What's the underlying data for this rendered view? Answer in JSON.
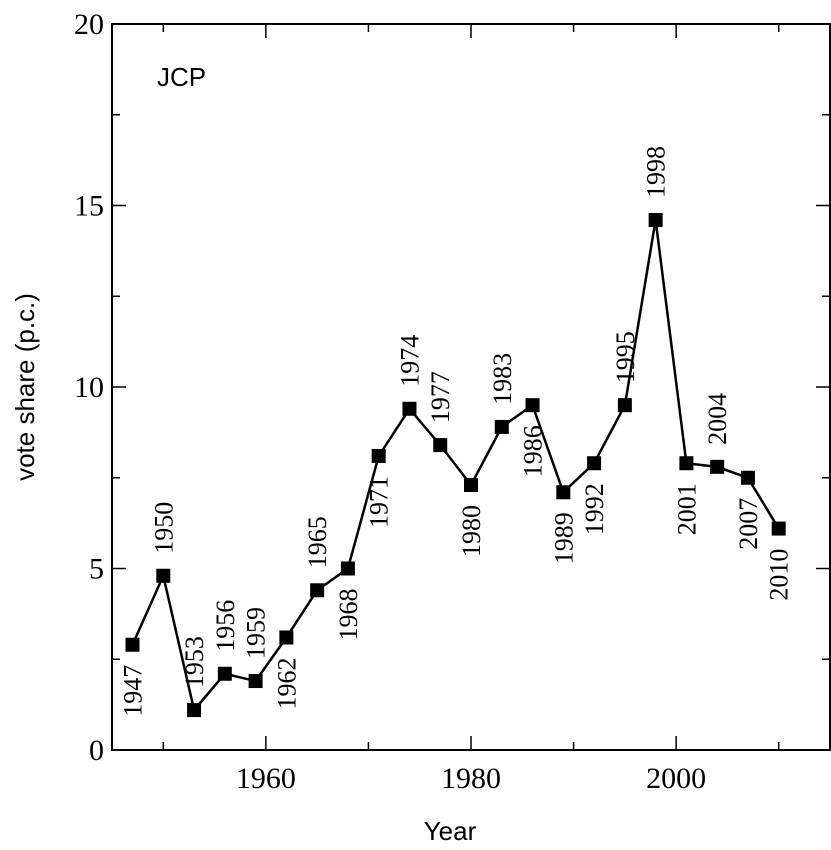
{
  "chart_data": {
    "type": "line",
    "panel_label": "JCP",
    "xlabel": "Year",
    "ylabel": "vote share (p.c.)",
    "xlim": [
      1945,
      2015
    ],
    "ylim": [
      0,
      20
    ],
    "x_ticks": [
      1960,
      1980,
      2000
    ],
    "y_ticks": [
      0,
      5,
      10,
      15,
      20
    ],
    "grid": false,
    "series": [
      {
        "x": [
          1947,
          1950,
          1953,
          1956,
          1959,
          1962,
          1965,
          1968,
          1971,
          1974,
          1977,
          1980,
          1983,
          1986,
          1989,
          1992,
          1995,
          1998,
          2001,
          2004,
          2007,
          2010
        ],
        "values": [
          2.9,
          4.8,
          1.1,
          2.1,
          1.9,
          3.1,
          4.4,
          5.0,
          8.1,
          9.4,
          8.4,
          7.3,
          8.9,
          9.5,
          7.1,
          7.9,
          9.5,
          14.6,
          7.9,
          7.8,
          7.5,
          6.1
        ],
        "color": "#000000",
        "marker": "square"
      }
    ],
    "annotations": [
      {
        "text": "1947",
        "x": 1947,
        "y": 2.9,
        "side": "below"
      },
      {
        "text": "1950",
        "x": 1950,
        "y": 4.8,
        "side": "above"
      },
      {
        "text": "1953",
        "x": 1953,
        "y": 1.1,
        "side": "above"
      },
      {
        "text": "1956",
        "x": 1956,
        "y": 2.1,
        "side": "above"
      },
      {
        "text": "1959",
        "x": 1959,
        "y": 1.9,
        "side": "above"
      },
      {
        "text": "1962",
        "x": 1962,
        "y": 3.1,
        "side": "below"
      },
      {
        "text": "1965",
        "x": 1965,
        "y": 4.4,
        "side": "above"
      },
      {
        "text": "1968",
        "x": 1968,
        "y": 5.0,
        "side": "below"
      },
      {
        "text": "1971",
        "x": 1971,
        "y": 8.1,
        "side": "below"
      },
      {
        "text": "1974",
        "x": 1974,
        "y": 9.4,
        "side": "above"
      },
      {
        "text": "1977",
        "x": 1977,
        "y": 8.4,
        "side": "above"
      },
      {
        "text": "1980",
        "x": 1980,
        "y": 7.3,
        "side": "below"
      },
      {
        "text": "1983",
        "x": 1983,
        "y": 8.9,
        "side": "above"
      },
      {
        "text": "1986",
        "x": 1986,
        "y": 9.5,
        "side": "below"
      },
      {
        "text": "1989",
        "x": 1989,
        "y": 7.1,
        "side": "below"
      },
      {
        "text": "1992",
        "x": 1992,
        "y": 7.9,
        "side": "below"
      },
      {
        "text": "1995",
        "x": 1995,
        "y": 9.5,
        "side": "above"
      },
      {
        "text": "1998",
        "x": 1998,
        "y": 14.6,
        "side": "above"
      },
      {
        "text": "2001",
        "x": 2001,
        "y": 7.9,
        "side": "below"
      },
      {
        "text": "2004",
        "x": 2004,
        "y": 7.8,
        "side": "above"
      },
      {
        "text": "2007",
        "x": 2007,
        "y": 7.5,
        "side": "below"
      },
      {
        "text": "2010",
        "x": 2010,
        "y": 6.1,
        "side": "below"
      }
    ]
  }
}
